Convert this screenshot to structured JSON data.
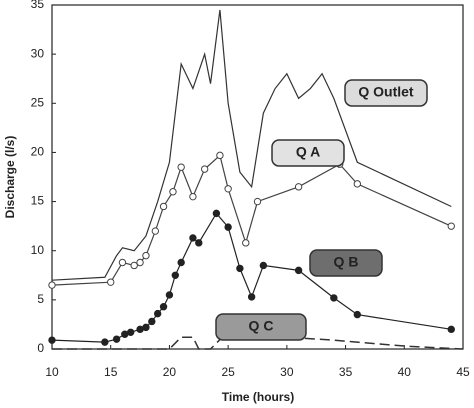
{
  "chart_data": {
    "type": "line",
    "x_label": "Time (hours)",
    "y_label": "Discharge (l/s)",
    "xlim": [
      10,
      45
    ],
    "xticks": [
      10,
      15,
      20,
      25,
      30,
      35,
      40,
      45
    ],
    "ylim": [
      0,
      35
    ],
    "yticks": [
      0,
      5,
      10,
      15,
      20,
      25,
      30,
      35
    ],
    "series": [
      {
        "name": "Q Outlet",
        "color": "#333333",
        "marker": "none",
        "linestyle": "solid",
        "x": [
          10,
          14.5,
          15.5,
          16,
          17,
          18,
          19,
          20,
          21,
          22,
          23,
          23.5,
          24.3,
          25,
          26,
          27,
          28,
          29,
          30,
          31,
          32,
          33,
          34,
          36,
          44
        ],
        "values": [
          7,
          7.3,
          9.5,
          10.3,
          10,
          11.5,
          15,
          19,
          29,
          26.5,
          30,
          27,
          34.5,
          25,
          18,
          16.5,
          24,
          26.5,
          28,
          25.5,
          26.5,
          28,
          25.5,
          19,
          14.5
        ]
      },
      {
        "name": "Q A",
        "color": "#444444",
        "marker": "open",
        "linestyle": "solid",
        "x": [
          10,
          15,
          16,
          17,
          17.5,
          18,
          18.8,
          19.5,
          20.3,
          21,
          22,
          23,
          24.3,
          25,
          26.5,
          27.5,
          31,
          34.5,
          36,
          44
        ],
        "values": [
          6.5,
          6.8,
          8.8,
          8.5,
          8.8,
          9.5,
          12,
          14.5,
          16,
          18.5,
          15.5,
          18.3,
          19.7,
          16.3,
          10.8,
          15,
          16.5,
          18.8,
          16.8,
          12.5
        ]
      },
      {
        "name": "Q B",
        "color": "#222222",
        "marker": "filled",
        "linestyle": "solid",
        "x": [
          10,
          14.5,
          15.5,
          16.2,
          16.7,
          17.5,
          18,
          18.5,
          19,
          19.5,
          20,
          20.5,
          21,
          22,
          22.5,
          24,
          25,
          26,
          27,
          28,
          31,
          34,
          36,
          44
        ],
        "values": [
          0.9,
          0.7,
          1,
          1.5,
          1.7,
          2,
          2.2,
          2.8,
          3.6,
          4.3,
          5.5,
          7.5,
          8.8,
          11.3,
          10.8,
          13.8,
          12.4,
          8.2,
          5.3,
          8.5,
          8,
          5.2,
          3.5,
          2
        ]
      },
      {
        "name": "Q C",
        "color": "#333333",
        "marker": "none",
        "linestyle": "dashed",
        "x": [
          10,
          20,
          21,
          22,
          22.5,
          23.5,
          24.5,
          30,
          34,
          40,
          45
        ],
        "values": [
          0,
          0,
          1.2,
          1.2,
          0,
          0,
          1.2,
          1.2,
          0.9,
          0.3,
          0
        ]
      }
    ]
  }
}
